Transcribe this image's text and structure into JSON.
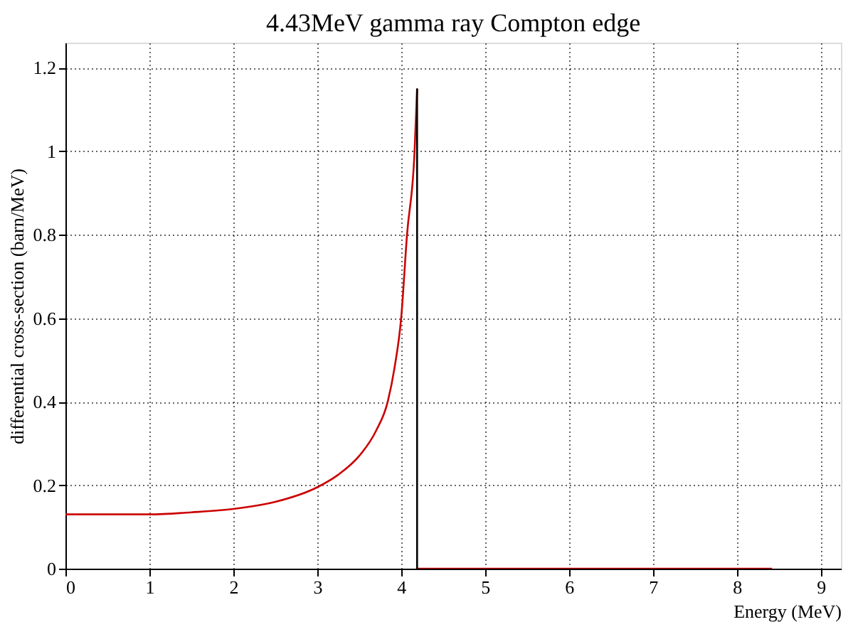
{
  "chart_data": {
    "type": "line",
    "title": "4.43MeV gamma ray Compton edge",
    "xlabel": "Energy (MeV)",
    "ylabel": "differential cross-section (barn/MeV)",
    "series": [
      {
        "color": "#cc0000",
        "x": [
          0,
          0.5,
          1,
          1.5,
          2,
          2.5,
          3,
          3.25,
          3.5,
          3.7,
          3.84,
          3.92,
          4.0,
          4.07,
          4.16,
          4.19
        ],
        "values": [
          0.13,
          0.13,
          0.13,
          0.135,
          0.143,
          0.16,
          0.195,
          0.225,
          0.27,
          0.33,
          0.4,
          0.48,
          0.6,
          0.8,
          1.0,
          1.15
        ]
      },
      {
        "color": "#cc0000",
        "x": [
          4.19,
          8.42
        ],
        "values": [
          0,
          0
        ]
      },
      {
        "color": "#000000",
        "x": [
          4.19,
          4.19
        ],
        "values": [
          1.15,
          0
        ]
      }
    ],
    "xlim": [
      0,
      9.24
    ],
    "xticks": [
      0,
      1,
      2,
      3,
      4,
      5,
      6,
      7,
      8,
      9
    ],
    "ylim": [
      0,
      1.26
    ],
    "yticks": [
      0,
      0.2,
      0.4,
      0.6,
      0.8,
      1,
      1.2
    ],
    "grid": true,
    "marker": "none",
    "line_style": "solid"
  }
}
